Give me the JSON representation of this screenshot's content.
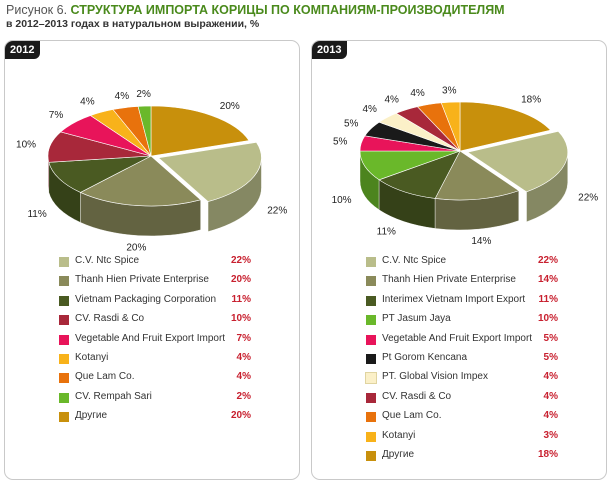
{
  "figure": {
    "number": "Рисунок 6.",
    "title": "СТРУКТУРА ИМПОРТА КОРИЦЫ ПО КОМПАНИЯМ-ПРОИЗВОДИТЕЛЯМ",
    "subtitle": "в 2012–2013 годах в натуральном выражении, %"
  },
  "chart_data": [
    {
      "type": "pie",
      "title": "2012",
      "slices": [
        {
          "label": "C.V. Ntc Spice",
          "value": 22,
          "value_label": "22%",
          "color": "#b9bd8a"
        },
        {
          "label": "Thanh Hien Private Enterprise",
          "value": 20,
          "value_label": "20%",
          "color": "#8a8a5a"
        },
        {
          "label": "Vietnam Packaging Corporation",
          "value": 11,
          "value_label": "11%",
          "color": "#4a5a22"
        },
        {
          "label": "CV. Rasdi & Co",
          "value": 10,
          "value_label": "10%",
          "color": "#a8283a"
        },
        {
          "label": "Vegetable And Fruit Export Import",
          "value": 7,
          "value_label": "7%",
          "color": "#e8145a"
        },
        {
          "label": "Kotanyi",
          "value": 4,
          "value_label": "4%",
          "color": "#f8b21a"
        },
        {
          "label": "Que Lam Co.",
          "value": 4,
          "value_label": "4%",
          "color": "#e8720c"
        },
        {
          "label": "CV. Rempah Sari",
          "value": 2,
          "value_label": "2%",
          "color": "#6ab82a"
        },
        {
          "label": "Другие",
          "value": 20,
          "value_label": "20%",
          "color": "#c8900c"
        }
      ]
    },
    {
      "type": "pie",
      "title": "2013",
      "slices": [
        {
          "label": "C.V. Ntc Spice",
          "value": 22,
          "value_label": "22%",
          "color": "#b9bd8a"
        },
        {
          "label": "Thanh Hien Private Enterprise",
          "value": 14,
          "value_label": "14%",
          "color": "#8a8a5a"
        },
        {
          "label": "Interimex Vietnam Import Export",
          "value": 11,
          "value_label": "11%",
          "color": "#4a5a22"
        },
        {
          "label": "PT Jasum Jaya",
          "value": 10,
          "value_label": "10%",
          "color": "#6ab82a"
        },
        {
          "label": "Vegetable And Fruit Export Import",
          "value": 5,
          "value_label": "5%",
          "color": "#e8145a"
        },
        {
          "label": "Pt Gorom Kencana",
          "value": 5,
          "value_label": "5%",
          "color": "#1a1a1a"
        },
        {
          "label": "PT. Global Vision Impex",
          "value": 4,
          "value_label": "4%",
          "color": "#fbf0c8"
        },
        {
          "label": "CV. Rasdi & Co",
          "value": 4,
          "value_label": "4%",
          "color": "#a8283a"
        },
        {
          "label": "Que Lam Co.",
          "value": 4,
          "value_label": "4%",
          "color": "#e8720c"
        },
        {
          "label": "Kotanyi",
          "value": 3,
          "value_label": "3%",
          "color": "#f8b21a"
        },
        {
          "label": "Другие",
          "value": 18,
          "value_label": "18%",
          "color": "#c8900c"
        }
      ]
    }
  ]
}
